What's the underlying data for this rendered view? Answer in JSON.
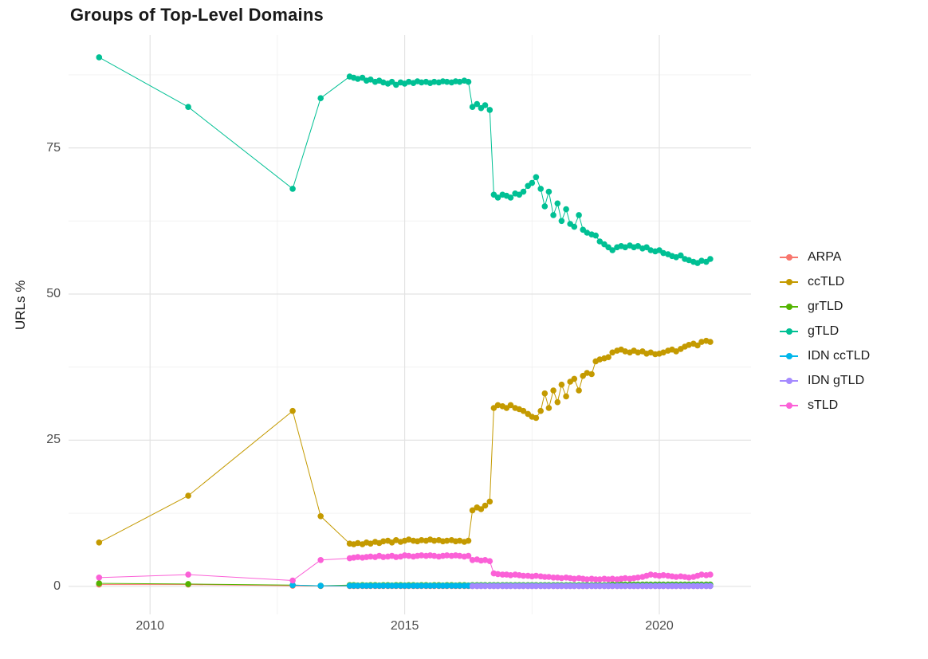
{
  "chart_data": {
    "type": "scatter",
    "title": "Groups of Top-Level Domains",
    "xlabel": "",
    "ylabel": "URLs %",
    "legend_position": "right",
    "grid": true,
    "background_color": "#FFFFFF",
    "grid_major_color": "#E3E3E3",
    "grid_minor_color": "#F0F0F0",
    "tick_label_color": "#4D4D4D",
    "xlim": [
      2008.4,
      2021.8
    ],
    "ylim": [
      -4.8,
      94.3
    ],
    "x_ticks": [
      2010,
      2015,
      2020
    ],
    "x_tick_labels": [
      "2010",
      "2015",
      "2020"
    ],
    "y_ticks": [
      0,
      25,
      50,
      75
    ],
    "y_tick_labels": [
      "0",
      "25",
      "50",
      "75"
    ],
    "x_minor_ticks": [
      2012.5,
      2017.5
    ],
    "y_minor_ticks": [
      12.5,
      37.5,
      62.5,
      87.5
    ],
    "x": [
      2009.0,
      2010.75,
      2012.8,
      2013.35,
      2013.92,
      2014.0,
      2014.08,
      2014.17,
      2014.25,
      2014.33,
      2014.42,
      2014.5,
      2014.58,
      2014.67,
      2014.75,
      2014.83,
      2014.92,
      2015.0,
      2015.08,
      2015.17,
      2015.25,
      2015.33,
      2015.42,
      2015.5,
      2015.58,
      2015.67,
      2015.75,
      2015.83,
      2015.92,
      2016.0,
      2016.08,
      2016.17,
      2016.25,
      2016.33,
      2016.42,
      2016.5,
      2016.58,
      2016.67,
      2016.75,
      2016.83,
      2016.92,
      2017.0,
      2017.08,
      2017.17,
      2017.25,
      2017.33,
      2017.42,
      2017.5,
      2017.58,
      2017.67,
      2017.75,
      2017.83,
      2017.92,
      2018.0,
      2018.08,
      2018.17,
      2018.25,
      2018.33,
      2018.42,
      2018.5,
      2018.58,
      2018.67,
      2018.75,
      2018.83,
      2018.92,
      2019.0,
      2019.08,
      2019.17,
      2019.25,
      2019.33,
      2019.42,
      2019.5,
      2019.58,
      2019.67,
      2019.75,
      2019.83,
      2019.92,
      2020.0,
      2020.08,
      2020.17,
      2020.25,
      2020.33,
      2020.42,
      2020.5,
      2020.58,
      2020.67,
      2020.75,
      2020.83,
      2020.92,
      2021.0
    ],
    "series": [
      {
        "name": "ARPA",
        "color": "#F8766D",
        "values": [
          0.3,
          0.3,
          0.1,
          0.05,
          0.05,
          0.05,
          0.05,
          0.05,
          0.05,
          0.05,
          0.05,
          0.05,
          0.05,
          0.05,
          0.05,
          0.05,
          0.05,
          0.05,
          0.05,
          0.05,
          0.05,
          0.05,
          0.05,
          0.05,
          0.05,
          0.05,
          0.05,
          0.05,
          0.05,
          0.05,
          0.05,
          0.05,
          0.05,
          0.05,
          0.05,
          0.05,
          0.05,
          0.05,
          0.05,
          0.05,
          0.05,
          0.05,
          0.05,
          0.05,
          0.05,
          0.05,
          0.05,
          0.05,
          0.05,
          0.05,
          0.05,
          0.05,
          0.05,
          0.05,
          0.05,
          0.05,
          0.05,
          0.05,
          0.05,
          0.05,
          0.05,
          0.05,
          0.05,
          0.05,
          0.05,
          0.05,
          0.05,
          0.05,
          0.05,
          0.05,
          0.05,
          0.05,
          0.05,
          0.05,
          0.05,
          0.05,
          0.05,
          0.05,
          0.05,
          0.05,
          0.05,
          0.05,
          0.05,
          0.05,
          0.05,
          0.05,
          0.05,
          0.05,
          0.05,
          0.05
        ]
      },
      {
        "name": "ccTLD",
        "color": "#C49A00",
        "values": [
          7.5,
          15.5,
          30.0,
          12.0,
          7.3,
          7.2,
          7.4,
          7.2,
          7.5,
          7.3,
          7.6,
          7.4,
          7.7,
          7.8,
          7.5,
          7.9,
          7.6,
          7.8,
          8.0,
          7.8,
          7.7,
          7.9,
          7.8,
          8.0,
          7.8,
          7.9,
          7.7,
          7.8,
          7.9,
          7.7,
          7.8,
          7.6,
          7.8,
          13.0,
          13.5,
          13.2,
          13.8,
          14.5,
          30.5,
          31.0,
          30.8,
          30.5,
          31.0,
          30.5,
          30.3,
          30.0,
          29.5,
          29.0,
          28.8,
          30.0,
          33.0,
          30.5,
          33.5,
          31.5,
          34.5,
          32.5,
          35.0,
          35.5,
          33.5,
          36.0,
          36.5,
          36.3,
          38.5,
          38.8,
          39.0,
          39.2,
          40.0,
          40.3,
          40.5,
          40.2,
          40.0,
          40.3,
          40.0,
          40.2,
          39.8,
          40.0,
          39.7,
          39.8,
          40.0,
          40.3,
          40.5,
          40.2,
          40.6,
          41.0,
          41.3,
          41.5,
          41.2,
          41.8,
          42.0,
          41.8
        ]
      },
      {
        "name": "grTLD",
        "color": "#53B400",
        "values": [
          0.5,
          0.4,
          0.2,
          0.1,
          0.2,
          0.2,
          0.15,
          0.2,
          0.15,
          0.2,
          0.2,
          0.15,
          0.2,
          0.2,
          0.15,
          0.2,
          0.2,
          0.15,
          0.2,
          0.2,
          0.15,
          0.2,
          0.2,
          0.15,
          0.2,
          0.2,
          0.15,
          0.2,
          0.2,
          0.15,
          0.2,
          0.2,
          0.15,
          0.2,
          0.2,
          0.2,
          0.2,
          0.2,
          0.2,
          0.2,
          0.2,
          0.2,
          0.2,
          0.2,
          0.2,
          0.2,
          0.2,
          0.2,
          0.2,
          0.2,
          0.2,
          0.2,
          0.2,
          0.2,
          0.2,
          0.2,
          0.2,
          0.2,
          0.2,
          0.2,
          0.2,
          0.2,
          0.2,
          0.2,
          0.2,
          0.2,
          0.3,
          0.3,
          0.3,
          0.3,
          0.3,
          0.3,
          0.3,
          0.3,
          0.3,
          0.3,
          0.3,
          0.3,
          0.3,
          0.3,
          0.3,
          0.3,
          0.3,
          0.3,
          0.3,
          0.3,
          0.3,
          0.3,
          0.3,
          0.3
        ]
      },
      {
        "name": "gTLD",
        "color": "#00C094",
        "values": [
          90.5,
          82.0,
          68.0,
          83.5,
          87.2,
          87.0,
          86.8,
          87.0,
          86.5,
          86.7,
          86.3,
          86.5,
          86.2,
          86.0,
          86.3,
          85.8,
          86.2,
          86.0,
          86.3,
          86.1,
          86.4,
          86.2,
          86.3,
          86.1,
          86.3,
          86.2,
          86.4,
          86.3,
          86.2,
          86.4,
          86.3,
          86.5,
          86.3,
          82.0,
          82.5,
          81.8,
          82.3,
          81.5,
          67.0,
          66.5,
          67.0,
          66.8,
          66.5,
          67.2,
          67.0,
          67.5,
          68.5,
          69.0,
          70.0,
          68.0,
          65.0,
          67.5,
          63.5,
          65.5,
          62.5,
          64.5,
          62.0,
          61.5,
          63.5,
          61.0,
          60.5,
          60.2,
          60.0,
          59.0,
          58.5,
          58.0,
          57.5,
          58.0,
          58.2,
          58.0,
          58.3,
          58.0,
          58.2,
          57.8,
          58.0,
          57.5,
          57.3,
          57.5,
          57.0,
          56.8,
          56.5,
          56.3,
          56.6,
          56.0,
          55.8,
          55.5,
          55.3,
          55.7,
          55.5,
          56.0
        ]
      },
      {
        "name": "IDN ccTLD",
        "color": "#00B6EB",
        "values": [
          null,
          null,
          0.2,
          0.1,
          0.1,
          0.1,
          0.1,
          0.1,
          0.1,
          0.1,
          0.1,
          0.1,
          0.1,
          0.1,
          0.1,
          0.1,
          0.1,
          0.1,
          0.1,
          0.1,
          0.1,
          0.1,
          0.1,
          0.1,
          0.1,
          0.1,
          0.1,
          0.1,
          0.1,
          0.1,
          0.1,
          0.1,
          0.1,
          0.1,
          0.1,
          0.1,
          0.1,
          0.1,
          0.1,
          0.1,
          0.1,
          0.1,
          0.1,
          0.1,
          0.1,
          0.1,
          0.1,
          0.1,
          0.1,
          0.1,
          0.1,
          0.1,
          0.1,
          0.1,
          0.1,
          0.1,
          0.1,
          0.1,
          0.1,
          0.1,
          0.1,
          0.1,
          0.1,
          0.1,
          0.1,
          0.1,
          0.1,
          0.1,
          0.1,
          0.1,
          0.1,
          0.1,
          0.1,
          0.1,
          0.1,
          0.1,
          0.1,
          0.1,
          0.1,
          0.1,
          0.1,
          0.1,
          0.1,
          0.1,
          0.1,
          0.1,
          0.1,
          0.1,
          0.1,
          0.1
        ]
      },
      {
        "name": "IDN gTLD",
        "color": "#A58AFF",
        "values": [
          null,
          null,
          null,
          null,
          null,
          null,
          null,
          null,
          null,
          null,
          null,
          null,
          null,
          null,
          null,
          null,
          null,
          null,
          null,
          null,
          null,
          null,
          null,
          null,
          null,
          null,
          null,
          null,
          null,
          null,
          null,
          null,
          null,
          0.05,
          0.05,
          0.05,
          0.05,
          0.05,
          0.05,
          0.05,
          0.05,
          0.05,
          0.05,
          0.05,
          0.05,
          0.05,
          0.05,
          0.05,
          0.05,
          0.05,
          0.05,
          0.05,
          0.05,
          0.05,
          0.05,
          0.05,
          0.05,
          0.05,
          0.05,
          0.05,
          0.05,
          0.05,
          0.05,
          0.05,
          0.05,
          0.05,
          0.05,
          0.05,
          0.05,
          0.05,
          0.05,
          0.05,
          0.05,
          0.05,
          0.05,
          0.05,
          0.05,
          0.05,
          0.05,
          0.05,
          0.05,
          0.05,
          0.05,
          0.05,
          0.05,
          0.05,
          0.05,
          0.05,
          0.05,
          0.05
        ]
      },
      {
        "name": "sTLD",
        "color": "#FB61D7",
        "values": [
          1.5,
          2.0,
          1.0,
          4.5,
          4.8,
          4.9,
          5.0,
          4.9,
          5.0,
          5.1,
          5.0,
          5.2,
          5.0,
          5.1,
          5.2,
          5.0,
          5.1,
          5.3,
          5.2,
          5.1,
          5.2,
          5.3,
          5.2,
          5.3,
          5.2,
          5.1,
          5.2,
          5.3,
          5.2,
          5.3,
          5.2,
          5.1,
          5.2,
          4.5,
          4.6,
          4.4,
          4.5,
          4.3,
          2.2,
          2.1,
          2.0,
          2.0,
          1.9,
          2.0,
          1.9,
          1.8,
          1.8,
          1.7,
          1.8,
          1.7,
          1.6,
          1.6,
          1.5,
          1.5,
          1.4,
          1.5,
          1.4,
          1.3,
          1.4,
          1.3,
          1.2,
          1.3,
          1.2,
          1.2,
          1.3,
          1.2,
          1.3,
          1.2,
          1.3,
          1.4,
          1.3,
          1.4,
          1.5,
          1.6,
          1.8,
          2.0,
          1.9,
          1.8,
          1.9,
          1.8,
          1.7,
          1.6,
          1.7,
          1.6,
          1.5,
          1.6,
          1.8,
          2.0,
          1.9,
          2.0
        ]
      }
    ]
  }
}
